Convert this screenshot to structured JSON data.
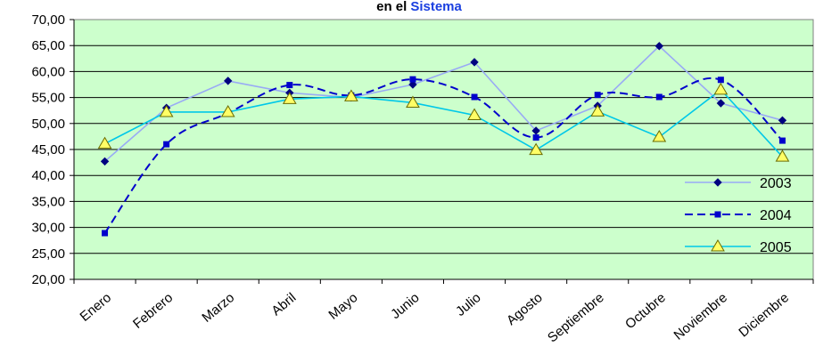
{
  "title": {
    "part1": "en el",
    "part2": "Sistema",
    "part2_color": "#1a3fe0"
  },
  "chart_data": {
    "type": "line",
    "title": "en el Sistema",
    "categories": [
      "Enero",
      "Febrero",
      "Marzo",
      "Abril",
      "Mayo",
      "Junio",
      "Julio",
      "Agosto",
      "Septiembre",
      "Octubre",
      "Noviembre",
      "Diciembre"
    ],
    "ylim": [
      20,
      70
    ],
    "yticks": [
      "20,00",
      "25,00",
      "30,00",
      "35,00",
      "40,00",
      "45,00",
      "50,00",
      "55,00",
      "60,00",
      "65,00",
      "70,00"
    ],
    "legend_position": "bottom-right",
    "grid": true,
    "plot_background": "#ccffcc",
    "series": [
      {
        "name": "2003",
        "color": "#99aaf5",
        "marker": "diamond",
        "marker_color": "#000080",
        "values": [
          42.7,
          53.0,
          58.2,
          55.9,
          55.0,
          57.5,
          61.8,
          48.6,
          53.4,
          64.9,
          53.9,
          50.6
        ]
      },
      {
        "name": "2004",
        "color": "#0000cc",
        "dash": true,
        "marker": "square",
        "marker_color": "#0000cc",
        "values": [
          28.9,
          46.0,
          52.0,
          57.4,
          55.4,
          58.5,
          55.1,
          47.3,
          55.5,
          55.1,
          58.4,
          46.7
        ]
      },
      {
        "name": "2005",
        "color": "#00c8e8",
        "marker": "triangle",
        "marker_color": "#ffff66",
        "values": [
          46.1,
          52.2,
          52.2,
          54.7,
          55.2,
          54.0,
          51.6,
          44.9,
          52.3,
          47.4,
          56.5,
          43.6
        ]
      }
    ]
  }
}
